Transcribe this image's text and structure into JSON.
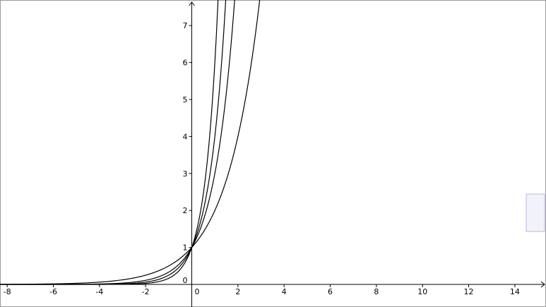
{
  "chart_data": {
    "type": "exponential",
    "series": [
      {
        "base": 2,
        "color": "#000000"
      },
      {
        "base": 3,
        "color": "#000000"
      },
      {
        "base": 4,
        "color": "#000000"
      },
      {
        "base": 6,
        "color": "#000000"
      }
    ],
    "xlim": [
      -8.31,
      15.35
    ],
    "ylim": [
      -0.61,
      7.69
    ],
    "xticks": [
      -8,
      -6,
      -4,
      -2,
      0,
      2,
      4,
      6,
      8,
      10,
      12,
      14
    ],
    "yticks": [
      0,
      1,
      2,
      3,
      4,
      5,
      6,
      7
    ]
  }
}
